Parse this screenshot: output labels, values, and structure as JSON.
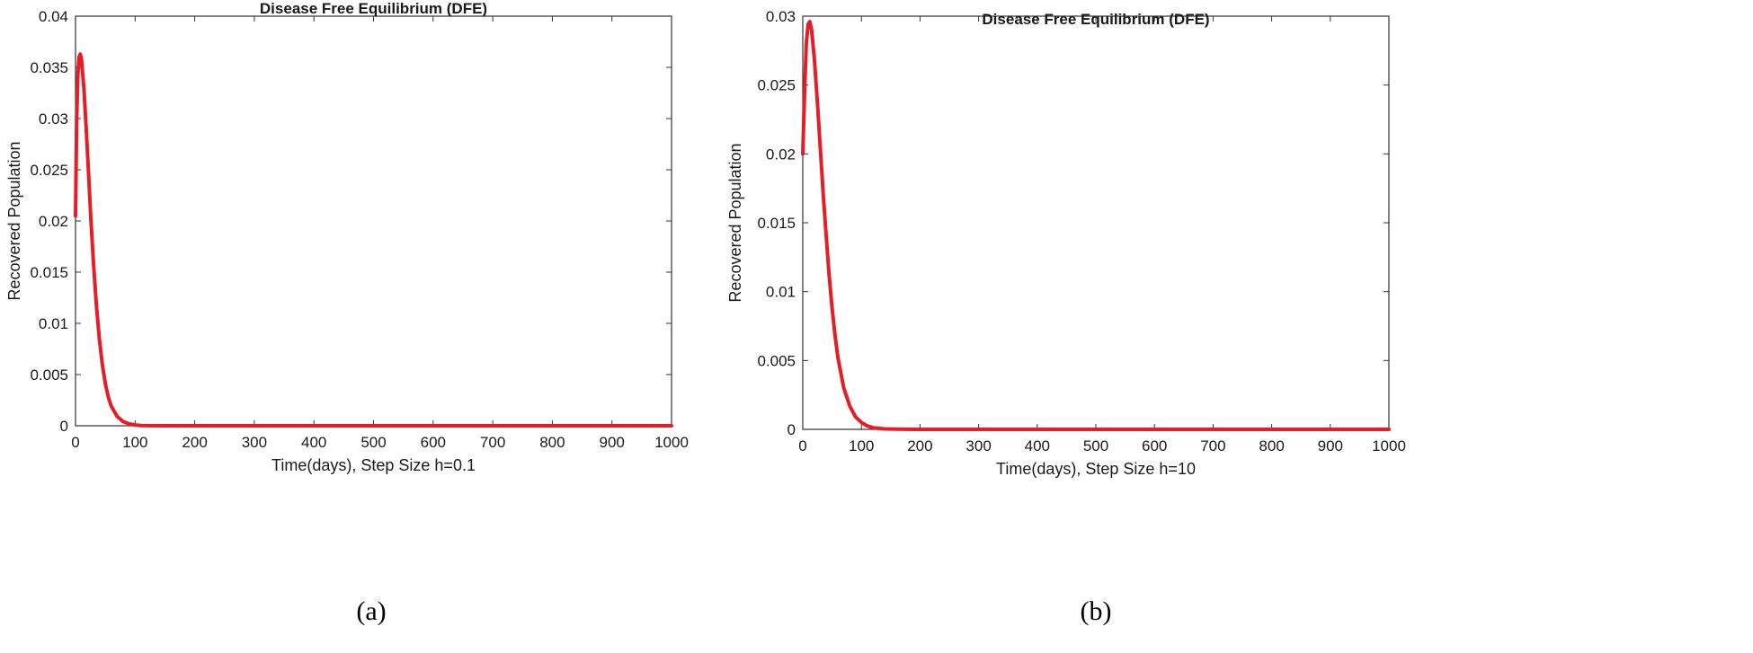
{
  "colors": {
    "curve": "#e41e26",
    "axis": "#333333"
  },
  "chart_data": [
    {
      "type": "line",
      "title": "Disease Free Equilibrium (DFE)",
      "xlabel": "Time(days), Step Size h=0.1",
      "ylabel": "Recovered Population",
      "caption": "(a)",
      "xlim": [
        0,
        1000
      ],
      "ylim": [
        0,
        0.04
      ],
      "xticks": [
        0,
        100,
        200,
        300,
        400,
        500,
        600,
        700,
        800,
        900,
        1000
      ],
      "xtick_labels": [
        "0",
        "100",
        "200",
        "300",
        "400",
        "500",
        "600",
        "700",
        "800",
        "900",
        "1000"
      ],
      "yticks": [
        0,
        0.005,
        0.01,
        0.015,
        0.02,
        0.025,
        0.03,
        0.035,
        0.04
      ],
      "ytick_labels": [
        "0",
        "0.005",
        "0.01",
        "0.015",
        "0.02",
        "0.025",
        "0.03",
        "0.035",
        "0.04"
      ],
      "grid": false,
      "series": [
        {
          "x": [
            0,
            2,
            4,
            6,
            8,
            10,
            14,
            18,
            22,
            26,
            30,
            35,
            40,
            45,
            50,
            55,
            60,
            70,
            80,
            90,
            100,
            110,
            120,
            150,
            200,
            300,
            500,
            700,
            1000
          ],
          "y": [
            0.0205,
            0.03,
            0.0345,
            0.036,
            0.0363,
            0.0358,
            0.033,
            0.029,
            0.0245,
            0.02,
            0.016,
            0.0118,
            0.0085,
            0.006,
            0.0041,
            0.0028,
            0.0019,
            0.0009,
            0.0004,
            0.00018,
            8e-05,
            3e-05,
            1e-05,
            0,
            0,
            0,
            0,
            0,
            0
          ]
        }
      ]
    },
    {
      "type": "line",
      "title": "Disease Free Equilibrium (DFE)",
      "xlabel": "Time(days), Step Size h=10",
      "ylabel": "Recovered Population",
      "caption": "(b)",
      "xlim": [
        0,
        1000
      ],
      "ylim": [
        0,
        0.03
      ],
      "xticks": [
        0,
        100,
        200,
        300,
        400,
        500,
        600,
        700,
        800,
        900,
        1000
      ],
      "xtick_labels": [
        "0",
        "100",
        "200",
        "300",
        "400",
        "500",
        "600",
        "700",
        "800",
        "900",
        "1000"
      ],
      "yticks": [
        0,
        0.005,
        0.01,
        0.015,
        0.02,
        0.025,
        0.03
      ],
      "ytick_labels": [
        "0",
        "0.005",
        "0.01",
        "0.015",
        "0.02",
        "0.025",
        "0.03"
      ],
      "grid": false,
      "series": [
        {
          "x": [
            0,
            3,
            6,
            9,
            12,
            15,
            20,
            25,
            30,
            35,
            40,
            45,
            50,
            55,
            60,
            70,
            80,
            90,
            100,
            110,
            120,
            140,
            160,
            200,
            300,
            500,
            700,
            1000
          ],
          "y": [
            0.02,
            0.0245,
            0.028,
            0.0294,
            0.0296,
            0.029,
            0.0268,
            0.0237,
            0.0203,
            0.017,
            0.014,
            0.0112,
            0.0088,
            0.0068,
            0.0052,
            0.003,
            0.0017,
            0.0009,
            0.0005,
            0.00025,
            0.00012,
            3e-05,
            1e-05,
            0,
            0,
            0,
            0,
            0
          ]
        }
      ]
    }
  ]
}
